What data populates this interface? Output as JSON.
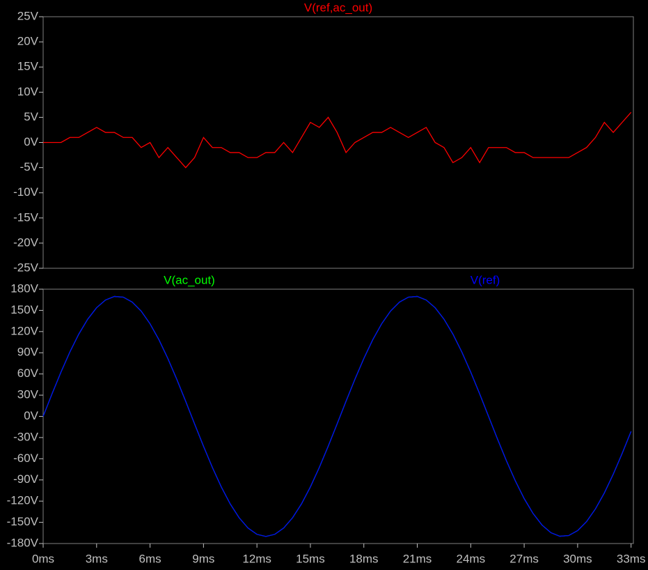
{
  "chart_data": [
    {
      "type": "line",
      "x": [
        0,
        0.5,
        1,
        1.5,
        2,
        2.5,
        3,
        3.5,
        4,
        4.5,
        5,
        5.5,
        6,
        6.5,
        7,
        7.5,
        8,
        8.5,
        9,
        9.5,
        10,
        10.5,
        11,
        11.5,
        12,
        12.5,
        13,
        13.5,
        14,
        14.5,
        15,
        15.5,
        16,
        16.5,
        17,
        17.5,
        18,
        18.5,
        19,
        19.5,
        20,
        20.5,
        21,
        21.5,
        22,
        22.5,
        23,
        23.5,
        24,
        24.5,
        25,
        25.5,
        26,
        26.5,
        27,
        27.5,
        28,
        28.5,
        29,
        29.5,
        30,
        30.5,
        31,
        31.5,
        32,
        32.5,
        33
      ],
      "series": [
        {
          "name": "V(ref,ac_out)",
          "color": "#ff0000",
          "values": [
            0,
            0,
            0,
            1,
            1,
            2,
            3,
            2,
            2,
            1,
            1,
            -1,
            0,
            -3,
            -1,
            -3,
            -5,
            -3,
            1,
            -1,
            -1,
            -2,
            -2,
            -3,
            -3,
            -2,
            -2,
            0,
            -2,
            1,
            4,
            3,
            5,
            2,
            -2,
            0,
            1,
            2,
            2,
            3,
            2,
            1,
            2,
            3,
            0,
            -1,
            -4,
            -3,
            -1,
            -4,
            -1,
            -1,
            -1,
            -2,
            -2,
            -3,
            -3,
            -3,
            -3,
            -3,
            -2,
            -1,
            1,
            4,
            2,
            4,
            6
          ]
        }
      ],
      "xlim": [
        0,
        33.13
      ],
      "ylim": [
        -25,
        25
      ],
      "yticks": [
        {
          "value": 25,
          "label": "25V"
        },
        {
          "value": 20,
          "label": "20V"
        },
        {
          "value": 15,
          "label": "15V"
        },
        {
          "value": 10,
          "label": "10V"
        },
        {
          "value": 5,
          "label": "5V"
        },
        {
          "value": 0,
          "label": "0V"
        },
        {
          "value": -5,
          "label": "-5V"
        },
        {
          "value": -10,
          "label": "-10V"
        },
        {
          "value": -15,
          "label": "-15V"
        },
        {
          "value": -20,
          "label": "-20V"
        },
        {
          "value": -25,
          "label": "-25V"
        }
      ]
    },
    {
      "type": "line",
      "x": [
        0,
        0.5,
        1,
        1.5,
        2,
        2.5,
        3,
        3.5,
        4,
        4.5,
        5,
        5.5,
        6,
        6.5,
        7,
        7.5,
        8,
        8.5,
        9,
        9.5,
        10,
        10.5,
        11,
        11.5,
        12,
        12.5,
        13,
        13.5,
        14,
        14.5,
        15,
        15.5,
        16,
        16.5,
        17,
        17.5,
        18,
        18.5,
        19,
        19.5,
        20,
        20.5,
        21,
        21.5,
        22,
        22.5,
        23,
        23.5,
        24,
        24.5,
        25,
        25.5,
        26,
        26.5,
        27,
        27.5,
        28,
        28.5,
        29,
        29.5,
        30,
        30.5,
        31,
        31.5,
        32,
        32.5,
        33
      ],
      "series": [
        {
          "name": "V(ac_out)",
          "color": "#00ff00",
          "values": [
            0,
            31.9,
            62.6,
            91.1,
            116.4,
            137.5,
            153.8,
            164.7,
            169.7,
            168.7,
            161.7,
            149.0,
            131.0,
            108.4,
            81.9,
            52.5,
            21.3,
            -10.7,
            -42.3,
            -72.4,
            -99.9,
            -123.9,
            -143.5,
            -158.1,
            -167.0,
            -170,
            -167.0,
            -158.1,
            -143.5,
            -123.9,
            -99.9,
            -72.4,
            -42.3,
            -10.7,
            21.3,
            52.5,
            81.9,
            108.4,
            131.0,
            149.0,
            161.7,
            168.7,
            169.7,
            164.7,
            153.8,
            137.5,
            116.4,
            91.1,
            62.6,
            31.9,
            0,
            -31.9,
            -62.6,
            -91.1,
            -116.4,
            -137.5,
            -153.8,
            -164.7,
            -169.7,
            -168.7,
            -161.7,
            -149.0,
            -131.0,
            -108.4,
            -81.9,
            -52.5,
            -21.3
          ]
        },
        {
          "name": "V(ref)",
          "color": "#0000ff",
          "values": [
            0,
            31.9,
            62.6,
            91.1,
            116.4,
            137.5,
            153.8,
            164.7,
            169.7,
            168.7,
            161.7,
            149.0,
            131.0,
            108.4,
            81.9,
            52.5,
            21.3,
            -10.7,
            -42.3,
            -72.4,
            -99.9,
            -123.9,
            -143.5,
            -158.1,
            -167.0,
            -170,
            -167.0,
            -158.1,
            -143.5,
            -123.9,
            -99.9,
            -72.4,
            -42.3,
            -10.7,
            21.3,
            52.5,
            81.9,
            108.4,
            131.0,
            149.0,
            161.7,
            168.7,
            169.7,
            164.7,
            153.8,
            137.5,
            116.4,
            91.1,
            62.6,
            31.9,
            0,
            -31.9,
            -62.6,
            -91.1,
            -116.4,
            -137.5,
            -153.8,
            -164.7,
            -169.7,
            -168.7,
            -161.7,
            -149.0,
            -131.0,
            -108.4,
            -81.9,
            -52.5,
            -21.3
          ]
        }
      ],
      "xlim": [
        0,
        33.13
      ],
      "xticks": [
        {
          "value": 0,
          "label": "0ms"
        },
        {
          "value": 3,
          "label": "3ms"
        },
        {
          "value": 6,
          "label": "6ms"
        },
        {
          "value": 9,
          "label": "9ms"
        },
        {
          "value": 12,
          "label": "12ms"
        },
        {
          "value": 15,
          "label": "15ms"
        },
        {
          "value": 18,
          "label": "18ms"
        },
        {
          "value": 21,
          "label": "21ms"
        },
        {
          "value": 24,
          "label": "24ms"
        },
        {
          "value": 27,
          "label": "27ms"
        },
        {
          "value": 30,
          "label": "30ms"
        },
        {
          "value": 33,
          "label": "33ms"
        }
      ],
      "ylim": [
        -180,
        180
      ],
      "yticks": [
        {
          "value": 180,
          "label": "180V"
        },
        {
          "value": 150,
          "label": "150V"
        },
        {
          "value": 120,
          "label": "120V"
        },
        {
          "value": 90,
          "label": "90V"
        },
        {
          "value": 60,
          "label": "60V"
        },
        {
          "value": 30,
          "label": "30V"
        },
        {
          "value": 0,
          "label": "0V"
        },
        {
          "value": -30,
          "label": "-30V"
        },
        {
          "value": -60,
          "label": "-60V"
        },
        {
          "value": -90,
          "label": "-90V"
        },
        {
          "value": -120,
          "label": "-120V"
        },
        {
          "value": -150,
          "label": "-150V"
        },
        {
          "value": -180,
          "label": "-180V"
        }
      ]
    }
  ]
}
